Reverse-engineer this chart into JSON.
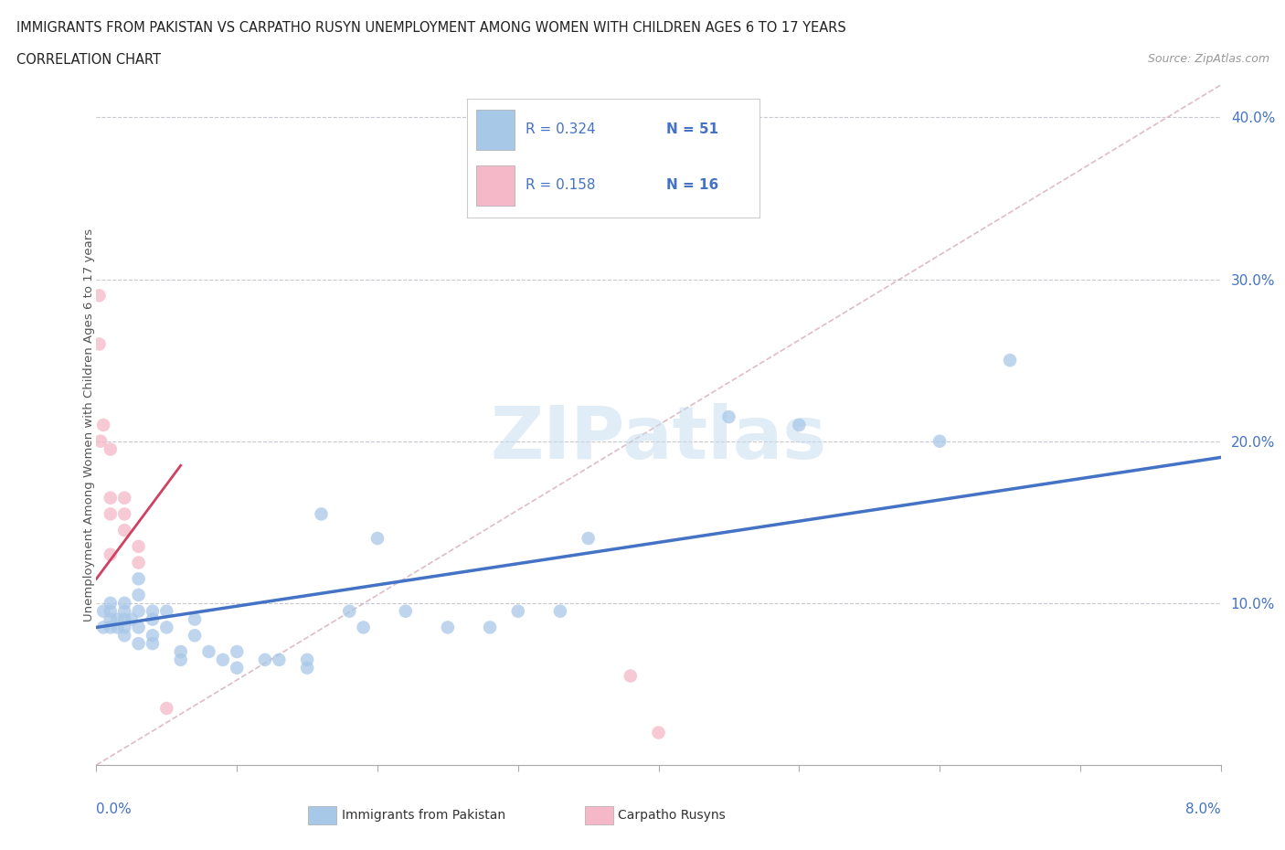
{
  "title_line1": "IMMIGRANTS FROM PAKISTAN VS CARPATHO RUSYN UNEMPLOYMENT AMONG WOMEN WITH CHILDREN AGES 6 TO 17 YEARS",
  "title_line2": "CORRELATION CHART",
  "source": "Source: ZipAtlas.com",
  "xlabel_start": "0.0%",
  "xlabel_end": "8.0%",
  "ylabel": "Unemployment Among Women with Children Ages 6 to 17 years",
  "watermark": "ZIPatlas",
  "legend_r1": "R = 0.324",
  "legend_n1": "N = 51",
  "legend_r2": "R = 0.158",
  "legend_n2": "N = 16",
  "legend_label1": "Immigrants from Pakistan",
  "legend_label2": "Carpatho Rusyns",
  "xmin": 0.0,
  "xmax": 0.08,
  "ymin": 0.0,
  "ymax": 0.42,
  "yticks": [
    0.0,
    0.1,
    0.2,
    0.3,
    0.4
  ],
  "ytick_labels": [
    "",
    "10.0%",
    "20.0%",
    "30.0%",
    "40.0%"
  ],
  "color_blue": "#a8c8e8",
  "color_pink": "#f4b8c8",
  "color_blue_line": "#4472C4",
  "color_pink_line": "#d04060",
  "color_diag": "#d0a0b0",
  "color_grid": "#c8c8d0",
  "pakistan_x": [
    0.0005,
    0.0005,
    0.001,
    0.001,
    0.001,
    0.001,
    0.0015,
    0.0015,
    0.002,
    0.002,
    0.002,
    0.002,
    0.002,
    0.0025,
    0.003,
    0.003,
    0.003,
    0.003,
    0.003,
    0.004,
    0.004,
    0.004,
    0.004,
    0.005,
    0.005,
    0.006,
    0.006,
    0.007,
    0.007,
    0.008,
    0.009,
    0.01,
    0.01,
    0.012,
    0.013,
    0.015,
    0.015,
    0.016,
    0.018,
    0.019,
    0.02,
    0.022,
    0.025,
    0.028,
    0.03,
    0.033,
    0.035,
    0.045,
    0.05,
    0.06,
    0.065
  ],
  "pakistan_y": [
    0.085,
    0.095,
    0.085,
    0.09,
    0.095,
    0.1,
    0.085,
    0.09,
    0.08,
    0.085,
    0.09,
    0.095,
    0.1,
    0.09,
    0.075,
    0.085,
    0.095,
    0.105,
    0.115,
    0.075,
    0.08,
    0.09,
    0.095,
    0.085,
    0.095,
    0.065,
    0.07,
    0.08,
    0.09,
    0.07,
    0.065,
    0.06,
    0.07,
    0.065,
    0.065,
    0.06,
    0.065,
    0.155,
    0.095,
    0.085,
    0.14,
    0.095,
    0.085,
    0.085,
    0.095,
    0.095,
    0.14,
    0.215,
    0.21,
    0.2,
    0.25
  ],
  "rusyn_x": [
    0.0002,
    0.0002,
    0.0003,
    0.0005,
    0.001,
    0.001,
    0.001,
    0.001,
    0.002,
    0.002,
    0.002,
    0.003,
    0.003,
    0.005,
    0.038,
    0.04
  ],
  "rusyn_y": [
    0.29,
    0.26,
    0.2,
    0.21,
    0.155,
    0.165,
    0.195,
    0.13,
    0.145,
    0.155,
    0.165,
    0.125,
    0.135,
    0.035,
    0.055,
    0.02
  ],
  "blue_trendline_x": [
    0.0,
    0.08
  ],
  "blue_trendline_y": [
    0.085,
    0.19
  ],
  "pink_trendline_x": [
    0.0,
    0.006
  ],
  "pink_trendline_y": [
    0.115,
    0.185
  ],
  "diag_trendline_x": [
    0.0,
    0.08
  ],
  "diag_trendline_y": [
    0.0,
    0.42
  ]
}
